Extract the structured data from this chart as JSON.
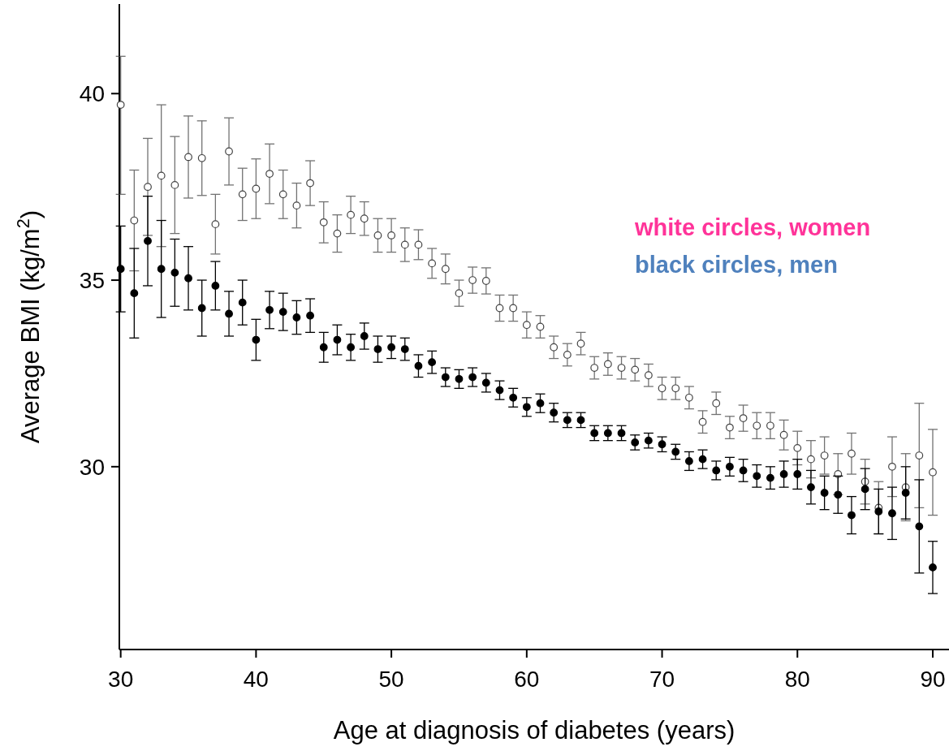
{
  "chart_data": {
    "type": "scatter",
    "xlabel": "Age at diagnosis of diabetes (years)",
    "ylabel": "Average BMI (kg/m$^{2}$)",
    "x": [
      30,
      31,
      32,
      33,
      34,
      35,
      36,
      37,
      38,
      39,
      40,
      41,
      42,
      43,
      44,
      45,
      46,
      47,
      48,
      49,
      50,
      51,
      52,
      53,
      54,
      55,
      56,
      57,
      58,
      59,
      60,
      61,
      62,
      63,
      64,
      65,
      66,
      67,
      68,
      69,
      70,
      71,
      72,
      73,
      74,
      75,
      76,
      77,
      78,
      79,
      80,
      81,
      82,
      83,
      84,
      85,
      86,
      87,
      88,
      89,
      90
    ],
    "xlim": [
      29.9,
      91.2
    ],
    "xticks": [
      30,
      40,
      50,
      60,
      70,
      80,
      90
    ],
    "ylim": [
      25.1,
      42.4
    ],
    "yticks": [
      30,
      35,
      40
    ],
    "grid": false,
    "marker": "circle",
    "series": [
      {
        "color": "#444444",
        "values": [
          39.7,
          36.6,
          37.5,
          37.8,
          37.55,
          38.3,
          38.27,
          36.5,
          38.45,
          37.3,
          37.45,
          37.85,
          37.3,
          37.0,
          37.6,
          36.55,
          36.25,
          36.75,
          36.65,
          36.2,
          36.2,
          35.95,
          35.95,
          35.45,
          35.3,
          34.65,
          35.0,
          34.98,
          34.25,
          34.25,
          33.8,
          33.75,
          33.2,
          33.0,
          33.3,
          32.65,
          32.75,
          32.65,
          32.6,
          32.45,
          32.1,
          32.1,
          31.85,
          31.2,
          31.7,
          31.05,
          31.3,
          31.1,
          31.1,
          30.85,
          30.5,
          30.2,
          30.3,
          29.8,
          30.35,
          29.6,
          28.9,
          30.0,
          29.45,
          30.3,
          29.85
        ],
        "errors": [
          [
            37.3,
            41.0
          ],
          1.35,
          1.3,
          1.9,
          1.3,
          1.1,
          1.0,
          0.8,
          0.9,
          0.7,
          0.8,
          0.8,
          0.65,
          0.6,
          0.6,
          0.55,
          0.5,
          0.5,
          0.45,
          0.45,
          0.45,
          0.45,
          0.4,
          0.4,
          0.4,
          0.35,
          0.35,
          0.35,
          0.35,
          0.35,
          0.35,
          0.3,
          0.3,
          0.3,
          0.3,
          0.3,
          0.3,
          0.3,
          0.3,
          0.3,
          0.3,
          0.3,
          0.3,
          0.3,
          0.3,
          0.3,
          0.35,
          0.35,
          0.35,
          0.4,
          0.45,
          0.5,
          0.5,
          0.55,
          0.55,
          0.6,
          0.7,
          0.8,
          0.9,
          1.4,
          1.15
        ]
      },
      {
        "color": "#000000",
        "values": [
          35.3,
          34.65,
          36.05,
          35.3,
          35.2,
          35.05,
          34.25,
          34.85,
          34.1,
          34.4,
          33.4,
          34.2,
          34.15,
          34.0,
          34.05,
          33.2,
          33.4,
          33.2,
          33.5,
          33.15,
          33.2,
          33.15,
          32.7,
          32.8,
          32.4,
          32.35,
          32.4,
          32.25,
          32.05,
          31.85,
          31.6,
          31.7,
          31.45,
          31.25,
          31.25,
          30.9,
          30.9,
          30.9,
          30.65,
          30.7,
          30.6,
          30.4,
          30.15,
          30.2,
          29.9,
          30.0,
          29.9,
          29.75,
          29.7,
          29.8,
          29.8,
          29.45,
          29.3,
          29.25,
          28.7,
          29.4,
          28.8,
          28.75,
          29.3,
          28.4,
          27.3
        ],
        "errors": [
          1.15,
          1.2,
          1.2,
          1.3,
          0.9,
          0.85,
          0.75,
          0.65,
          0.6,
          0.6,
          0.55,
          0.5,
          0.5,
          0.45,
          0.45,
          0.4,
          0.4,
          0.35,
          0.35,
          0.35,
          0.3,
          0.3,
          0.3,
          0.3,
          0.25,
          0.25,
          0.25,
          0.25,
          0.25,
          0.25,
          0.25,
          0.25,
          0.25,
          0.2,
          0.2,
          0.2,
          0.2,
          0.2,
          0.2,
          0.2,
          0.2,
          0.2,
          0.25,
          0.25,
          0.25,
          0.25,
          0.3,
          0.3,
          0.3,
          0.35,
          0.4,
          0.45,
          0.45,
          0.5,
          0.5,
          0.55,
          0.6,
          0.7,
          0.7,
          1.25,
          0.7
        ]
      }
    ],
    "annotations": [
      "white circles, women",
      "black circles, men"
    ]
  }
}
